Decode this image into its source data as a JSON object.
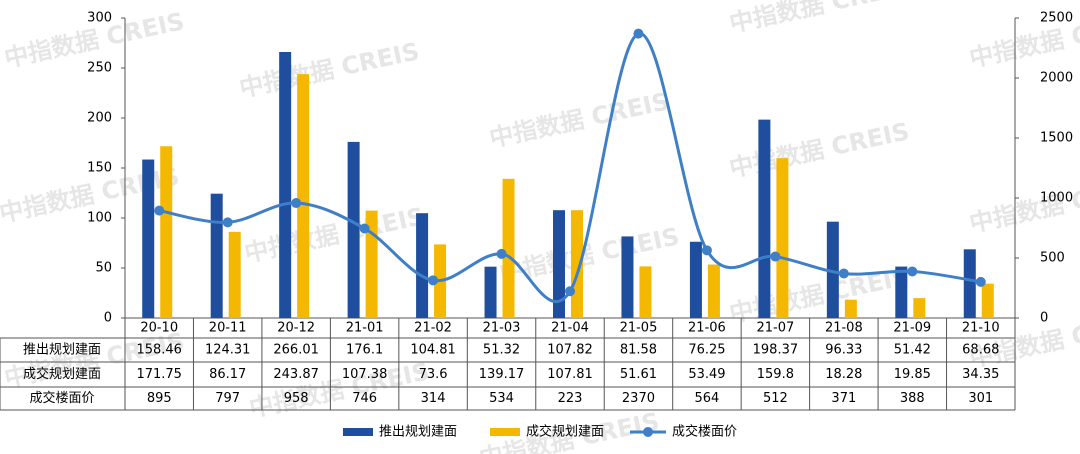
{
  "watermark": "中指数据 CREIS",
  "chart_data": {
    "type": "bar",
    "categories": [
      "20-10",
      "20-11",
      "20-12",
      "21-01",
      "21-02",
      "21-03",
      "21-04",
      "21-05",
      "21-06",
      "21-07",
      "21-08",
      "21-09",
      "21-10"
    ],
    "series": [
      {
        "name": "推出规划建面",
        "color": "#1f4e9e",
        "values": [
          158.46,
          124.31,
          266.01,
          176.1,
          104.81,
          51.32,
          107.82,
          81.58,
          76.25,
          198.37,
          96.33,
          51.42,
          68.68
        ]
      },
      {
        "name": "成交规划建面",
        "color": "#f5b800",
        "values": [
          171.75,
          86.17,
          243.87,
          107.38,
          73.6,
          139.17,
          107.81,
          51.61,
          53.49,
          159.8,
          18.28,
          19.85,
          34.35
        ]
      },
      {
        "name": "成交楼面价",
        "color": "#3f7fc8",
        "type": "line",
        "axis": "y2",
        "values": [
          895,
          797,
          958,
          746,
          314,
          534,
          223,
          2370,
          564,
          512,
          371,
          388,
          301
        ]
      }
    ],
    "ylim": [
      0,
      300
    ],
    "yticks": [
      0,
      50,
      100,
      150,
      200,
      250,
      300
    ],
    "y2lim": [
      0,
      2500
    ],
    "y2ticks": [
      0,
      500,
      1000,
      1500,
      2000,
      2500
    ]
  }
}
